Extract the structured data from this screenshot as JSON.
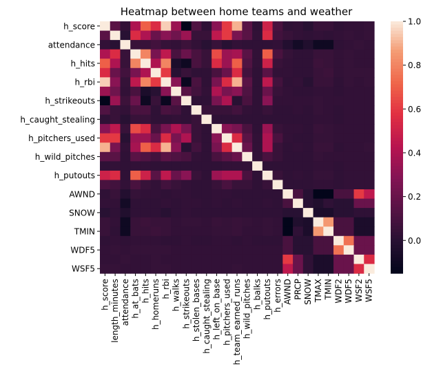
{
  "chart_data": {
    "type": "heatmap",
    "title": "Heatmap between home teams and weather",
    "x_labels": [
      "h_score",
      "length_minutes",
      "attendance",
      "h_at_bats",
      "h_hits",
      "h_homeruns",
      "h_rbi",
      "h_walks",
      "h_strikeouts",
      "h_stolen_bases",
      "h_caught_stealing",
      "h_left_on_base",
      "h_pitchers_used",
      "h_team_earned_runs",
      "h_wild_pitches",
      "h_balks",
      "h_putouts",
      "h_errors",
      "AWND",
      "PRCP",
      "SNOW",
      "TMAX",
      "TMIN",
      "WDF2",
      "WDF5",
      "WSF2",
      "WSF5"
    ],
    "y_labels": [
      "h_score",
      "attendance",
      "h_hits",
      "h_rbi",
      "h_strikeouts",
      "h_caught_stealing",
      "h_pitchers_used",
      "h_wild_pitches",
      "h_putouts",
      "AWND",
      "SNOW",
      "TMIN",
      "WDF5",
      "WSF5"
    ],
    "colorbar": {
      "min": -0.15,
      "max": 1.0,
      "ticks": [
        0.0,
        0.2,
        0.4,
        0.6,
        0.8,
        1.0
      ],
      "tick_labels": [
        "0.0",
        "0.2",
        "0.4",
        "0.6",
        "0.8",
        "1.0"
      ]
    },
    "colormap": "rocket",
    "values": [
      [
        1.0,
        0.15,
        0.03,
        0.4,
        0.7,
        0.55,
        0.95,
        0.35,
        -0.15,
        0.12,
        0.02,
        0.3,
        0.6,
        0.9,
        0.15,
        0.02,
        0.5,
        0.1,
        0.02,
        0.03,
        0.0,
        0.05,
        0.05,
        0.02,
        0.03,
        0.03,
        0.04
      ],
      [
        0.15,
        1.0,
        0.0,
        0.55,
        0.4,
        0.2,
        0.3,
        0.22,
        0.35,
        0.05,
        0.05,
        0.45,
        0.6,
        0.25,
        0.15,
        0.03,
        0.55,
        0.08,
        0.05,
        0.03,
        0.02,
        0.03,
        0.02,
        0.03,
        0.04,
        0.03,
        0.04
      ],
      [
        0.03,
        0.0,
        1.0,
        0.05,
        0.05,
        0.08,
        0.04,
        0.03,
        0.06,
        0.03,
        0.0,
        0.05,
        0.0,
        0.03,
        0.02,
        0.02,
        0.02,
        0.03,
        -0.02,
        -0.08,
        -0.03,
        -0.1,
        -0.1,
        0.02,
        0.03,
        0.04,
        0.03
      ],
      [
        0.4,
        0.55,
        0.05,
        1.0,
        0.8,
        0.25,
        0.45,
        0.1,
        0.2,
        0.1,
        0.05,
        0.65,
        0.35,
        0.38,
        0.15,
        0.03,
        0.7,
        0.1,
        0.04,
        0.02,
        0.02,
        0.05,
        0.05,
        0.03,
        0.04,
        0.03,
        0.03
      ],
      [
        0.7,
        0.4,
        0.05,
        0.8,
        1.0,
        0.4,
        0.8,
        -0.05,
        -0.1,
        0.1,
        0.05,
        0.55,
        0.35,
        0.7,
        0.12,
        0.03,
        0.5,
        0.05,
        0.03,
        0.02,
        0.02,
        0.06,
        0.05,
        0.03,
        0.04,
        0.03,
        0.03
      ],
      [
        0.55,
        0.2,
        0.08,
        0.25,
        0.4,
        1.0,
        0.6,
        0.0,
        0.05,
        0.02,
        0.02,
        0.1,
        0.2,
        0.55,
        0.08,
        0.02,
        0.15,
        0.03,
        0.03,
        0.02,
        0.02,
        0.05,
        0.06,
        0.03,
        0.04,
        0.04,
        0.04
      ],
      [
        0.95,
        0.3,
        0.04,
        0.45,
        0.8,
        0.6,
        1.0,
        0.3,
        -0.12,
        0.1,
        0.02,
        0.25,
        0.55,
        0.9,
        0.15,
        0.02,
        0.45,
        0.08,
        0.02,
        0.03,
        0.0,
        0.05,
        0.05,
        0.02,
        0.04,
        0.03,
        0.04
      ],
      [
        0.35,
        0.22,
        0.03,
        0.1,
        -0.05,
        0.0,
        0.3,
        1.0,
        0.15,
        0.08,
        0.03,
        0.4,
        0.25,
        0.3,
        0.12,
        0.02,
        0.2,
        0.05,
        0.03,
        0.02,
        0.02,
        0.03,
        0.03,
        0.02,
        0.03,
        0.03,
        0.03
      ],
      [
        -0.15,
        0.35,
        0.06,
        0.2,
        -0.1,
        0.05,
        -0.12,
        0.15,
        1.0,
        0.02,
        0.02,
        0.25,
        0.4,
        0.0,
        0.1,
        0.02,
        0.3,
        0.03,
        0.03,
        0.03,
        0.03,
        0.04,
        0.03,
        0.03,
        0.03,
        0.03,
        0.03
      ],
      [
        0.12,
        0.05,
        0.03,
        0.1,
        0.1,
        0.02,
        0.1,
        0.08,
        0.02,
        1.0,
        0.05,
        0.05,
        0.05,
        0.08,
        0.03,
        0.02,
        0.05,
        0.02,
        0.02,
        0.03,
        0.02,
        0.04,
        0.03,
        0.02,
        0.03,
        0.03,
        0.03
      ],
      [
        0.02,
        0.05,
        0.0,
        0.05,
        0.05,
        0.02,
        0.02,
        0.03,
        0.02,
        0.05,
        1.0,
        0.02,
        0.02,
        0.02,
        0.02,
        0.02,
        0.02,
        0.02,
        0.02,
        0.02,
        0.02,
        0.03,
        0.03,
        0.02,
        0.03,
        0.03,
        0.03
      ],
      [
        0.3,
        0.45,
        0.05,
        0.65,
        0.55,
        0.1,
        0.25,
        0.4,
        0.25,
        0.05,
        0.02,
        1.0,
        0.3,
        0.25,
        0.1,
        0.02,
        0.35,
        0.05,
        0.03,
        0.03,
        0.02,
        0.05,
        0.04,
        0.03,
        0.03,
        0.03,
        0.03
      ],
      [
        0.6,
        0.6,
        0.0,
        0.35,
        0.35,
        0.2,
        0.55,
        0.25,
        0.4,
        0.05,
        0.02,
        0.3,
        1.0,
        0.55,
        0.15,
        0.03,
        0.4,
        0.1,
        0.03,
        0.02,
        0.02,
        0.04,
        0.04,
        0.03,
        0.03,
        0.03,
        0.03
      ],
      [
        0.9,
        0.25,
        0.03,
        0.38,
        0.7,
        0.55,
        0.9,
        0.3,
        0.0,
        0.08,
        0.02,
        0.25,
        0.55,
        1.0,
        0.2,
        0.03,
        0.4,
        0.05,
        0.02,
        0.03,
        0.02,
        0.05,
        0.05,
        0.02,
        0.03,
        0.03,
        0.04
      ],
      [
        0.15,
        0.15,
        0.02,
        0.15,
        0.12,
        0.08,
        0.15,
        0.12,
        0.1,
        0.03,
        0.02,
        0.1,
        0.15,
        0.2,
        1.0,
        0.03,
        0.1,
        0.05,
        0.02,
        0.02,
        0.02,
        0.04,
        0.03,
        0.03,
        0.03,
        0.03,
        0.03
      ],
      [
        0.02,
        0.03,
        0.02,
        0.03,
        0.03,
        0.02,
        0.02,
        0.02,
        0.02,
        0.02,
        0.02,
        0.02,
        0.03,
        0.03,
        0.03,
        1.0,
        0.02,
        0.02,
        0.02,
        0.02,
        0.02,
        0.03,
        0.03,
        0.02,
        0.03,
        0.03,
        0.03
      ],
      [
        0.5,
        0.55,
        0.02,
        0.7,
        0.5,
        0.15,
        0.45,
        0.2,
        0.3,
        0.05,
        0.02,
        0.35,
        0.4,
        0.4,
        0.1,
        0.02,
        1.0,
        0.05,
        0.02,
        0.03,
        0.02,
        0.04,
        0.04,
        0.02,
        0.03,
        0.03,
        0.03
      ],
      [
        0.1,
        0.08,
        0.03,
        0.1,
        0.05,
        0.03,
        0.08,
        0.05,
        0.03,
        0.02,
        0.02,
        0.05,
        0.1,
        0.05,
        0.05,
        0.02,
        0.05,
        1.0,
        0.02,
        0.02,
        0.02,
        0.03,
        0.03,
        0.02,
        0.03,
        0.03,
        0.03
      ],
      [
        0.02,
        0.05,
        -0.02,
        0.04,
        0.03,
        0.03,
        0.02,
        0.03,
        0.03,
        0.02,
        0.02,
        0.03,
        0.03,
        0.02,
        0.02,
        0.02,
        0.02,
        0.02,
        1.0,
        0.1,
        0.0,
        -0.15,
        -0.15,
        0.1,
        0.1,
        0.6,
        0.45
      ],
      [
        0.03,
        0.03,
        -0.08,
        0.02,
        0.02,
        0.02,
        0.03,
        0.02,
        0.03,
        0.03,
        0.02,
        0.03,
        0.02,
        0.03,
        0.02,
        0.02,
        0.03,
        0.02,
        0.1,
        1.0,
        0.0,
        -0.03,
        0.02,
        0.0,
        0.0,
        0.2,
        0.2
      ],
      [
        0.0,
        0.02,
        -0.03,
        0.02,
        0.02,
        0.02,
        0.0,
        0.02,
        0.03,
        0.02,
        0.02,
        0.02,
        0.02,
        0.02,
        0.02,
        0.02,
        0.02,
        0.02,
        0.0,
        0.0,
        1.0,
        -0.05,
        -0.05,
        0.0,
        0.0,
        0.02,
        0.02
      ],
      [
        0.05,
        0.03,
        -0.1,
        0.05,
        0.06,
        0.05,
        0.05,
        0.03,
        0.04,
        0.04,
        0.03,
        0.05,
        0.04,
        0.05,
        0.04,
        0.03,
        0.04,
        0.03,
        -0.15,
        -0.03,
        -0.05,
        1.0,
        0.85,
        0.1,
        0.1,
        -0.05,
        -0.05
      ],
      [
        0.05,
        0.02,
        -0.1,
        0.05,
        0.05,
        0.06,
        0.05,
        0.03,
        0.03,
        0.03,
        0.03,
        0.04,
        0.04,
        0.05,
        0.03,
        0.03,
        0.04,
        0.03,
        -0.15,
        0.02,
        -0.05,
        0.85,
        1.0,
        0.1,
        0.1,
        -0.05,
        -0.05
      ],
      [
        0.02,
        0.03,
        0.02,
        0.03,
        0.03,
        0.03,
        0.02,
        0.02,
        0.03,
        0.02,
        0.02,
        0.03,
        0.03,
        0.02,
        0.03,
        0.02,
        0.02,
        0.02,
        0.1,
        0.0,
        0.0,
        0.1,
        0.1,
        1.0,
        0.75,
        0.2,
        0.2
      ],
      [
        0.03,
        0.04,
        0.03,
        0.04,
        0.04,
        0.04,
        0.04,
        0.03,
        0.03,
        0.03,
        0.03,
        0.03,
        0.03,
        0.03,
        0.03,
        0.03,
        0.03,
        0.03,
        0.1,
        0.0,
        0.0,
        0.1,
        0.1,
        0.75,
        1.0,
        0.2,
        0.2
      ],
      [
        0.03,
        0.03,
        0.04,
        0.03,
        0.03,
        0.04,
        0.03,
        0.03,
        0.03,
        0.03,
        0.03,
        0.03,
        0.03,
        0.03,
        0.03,
        0.03,
        0.03,
        0.03,
        0.6,
        0.2,
        0.02,
        -0.05,
        -0.05,
        0.2,
        0.2,
        1.0,
        0.55
      ],
      [
        0.04,
        0.04,
        0.03,
        0.03,
        0.03,
        0.04,
        0.04,
        0.03,
        0.03,
        0.03,
        0.03,
        0.03,
        0.03,
        0.04,
        0.03,
        0.03,
        0.03,
        0.03,
        0.45,
        0.2,
        0.02,
        -0.05,
        -0.05,
        0.2,
        0.2,
        0.55,
        1.0
      ]
    ]
  }
}
